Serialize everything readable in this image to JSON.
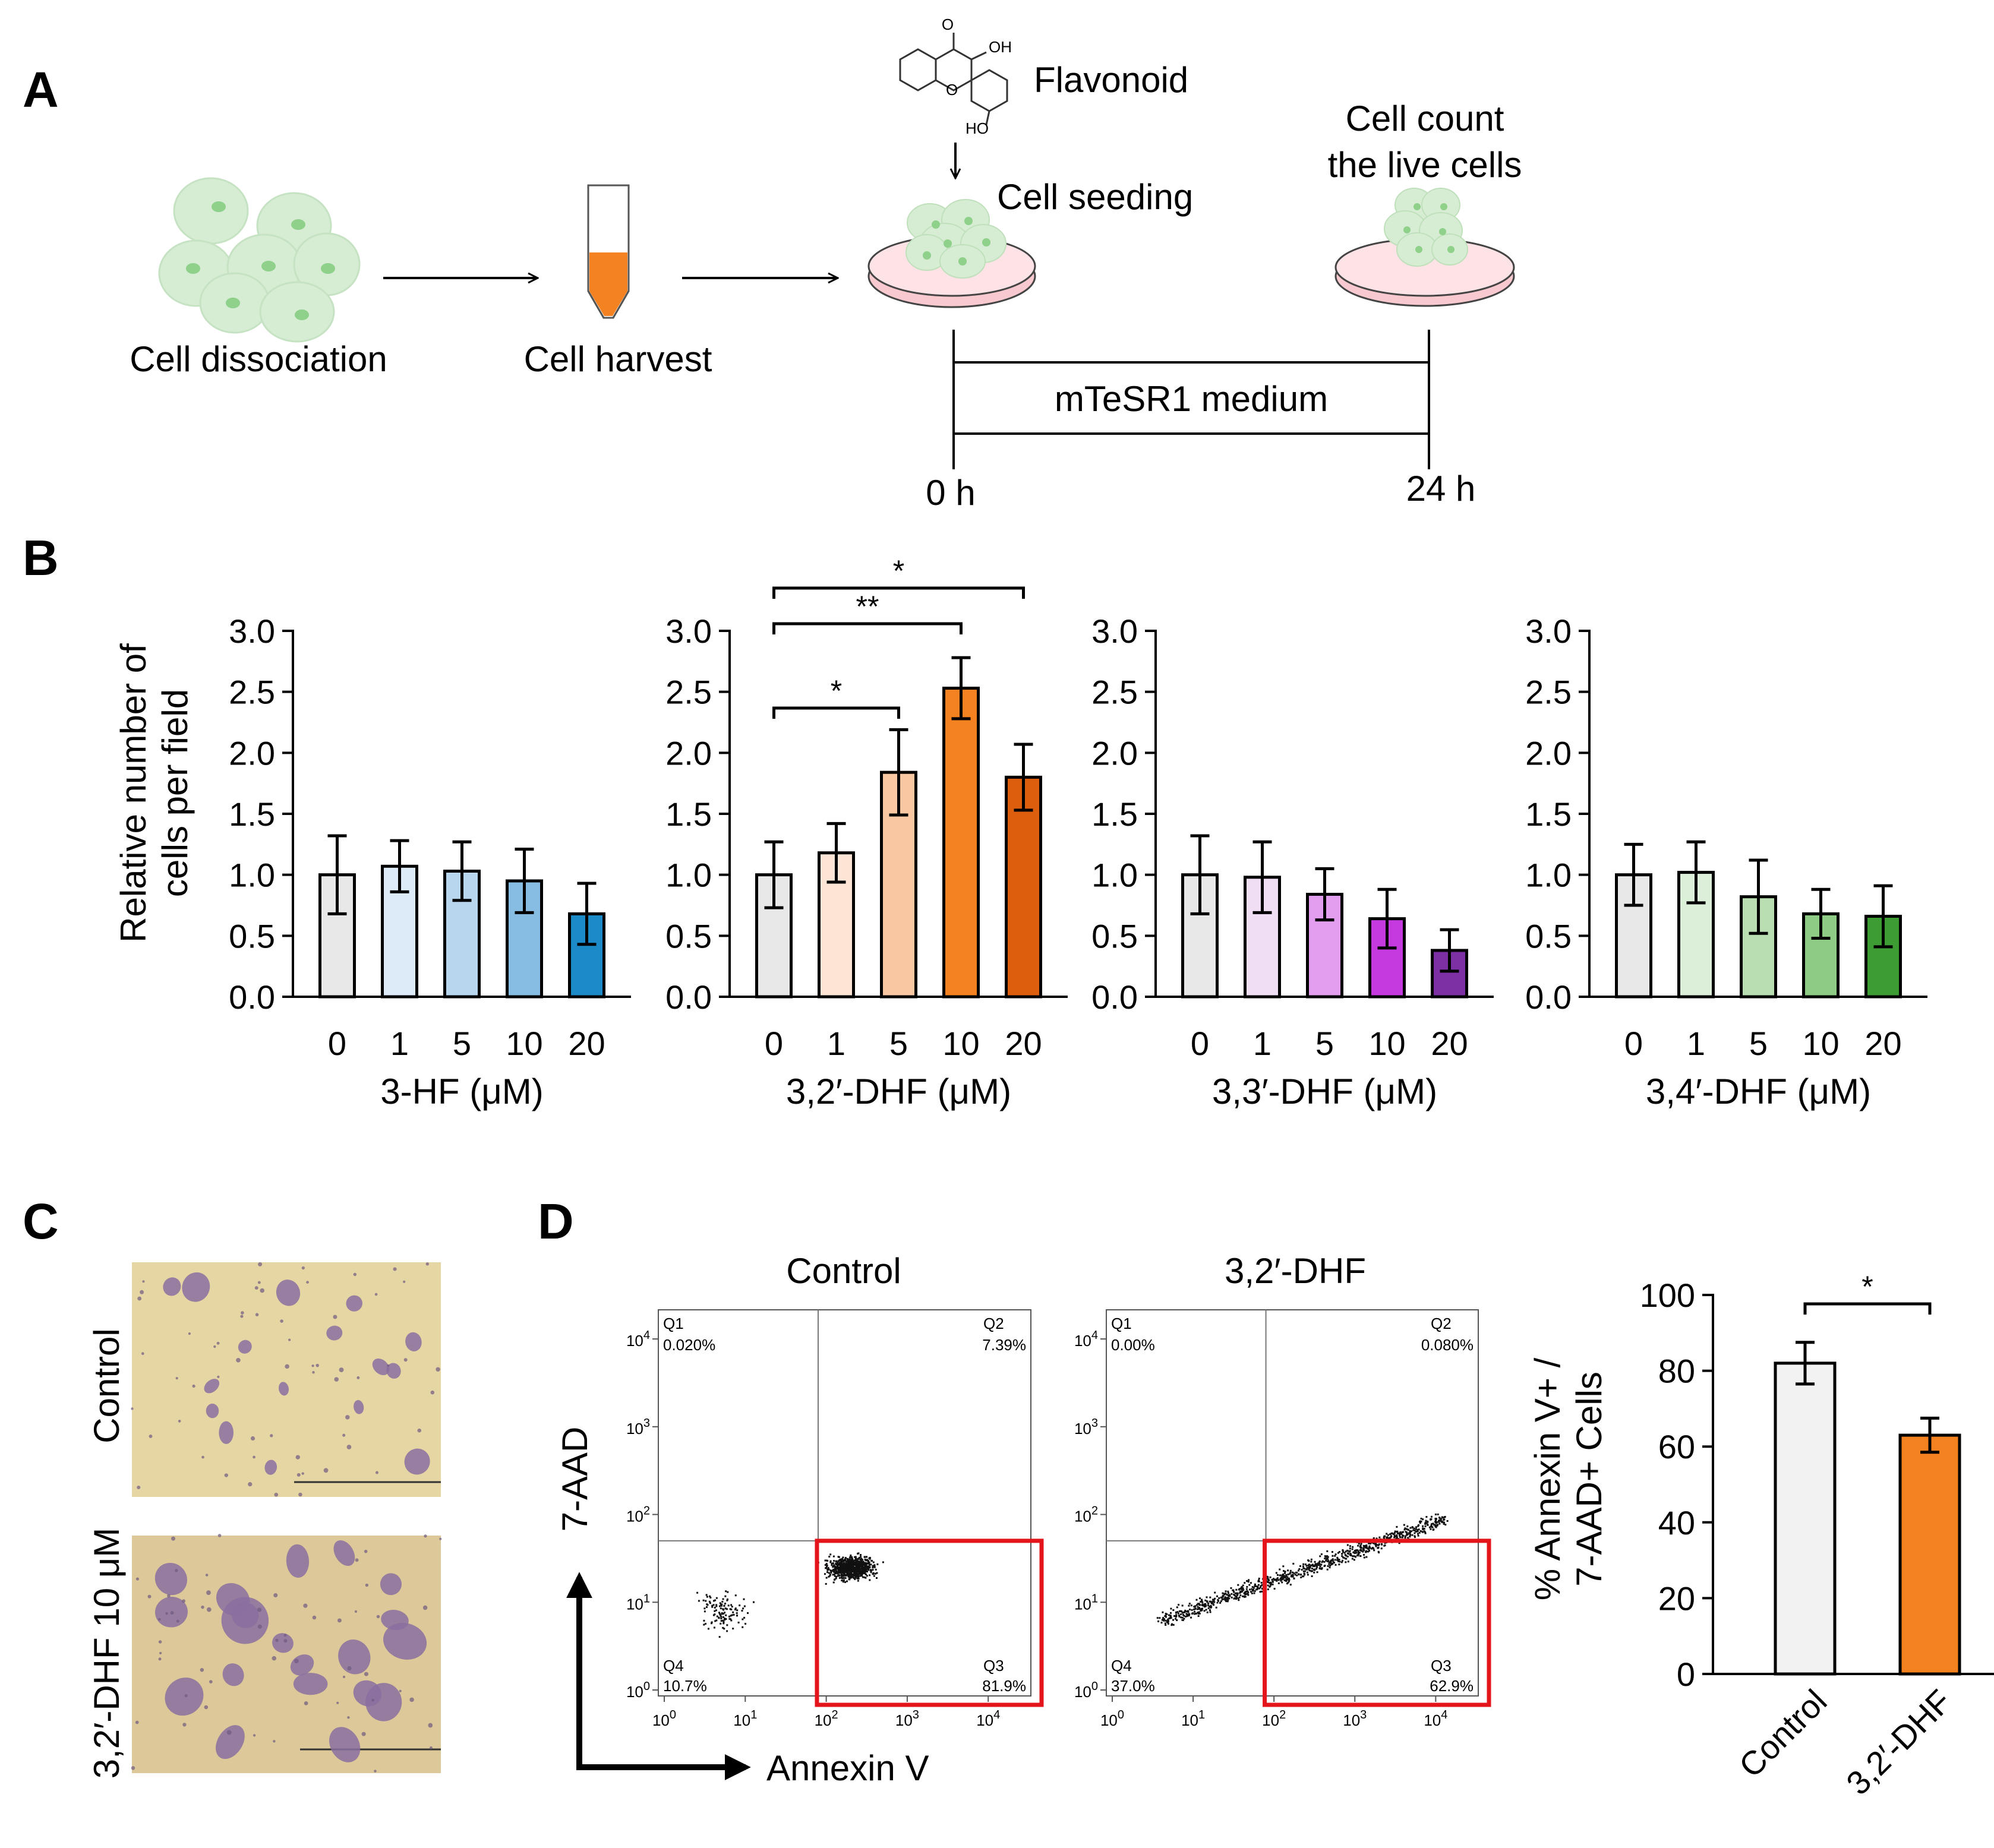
{
  "panels": {
    "a": "A",
    "b": "B",
    "c": "C",
    "d": "D"
  },
  "panel_a": {
    "flavonoid": "Flavonoid",
    "cell_seeding": "Cell seeding",
    "cell_count_line1": "Cell count",
    "cell_count_line2": "the live cells",
    "cell_dissociation": "Cell dissociation",
    "cell_harvest": "Cell harvest",
    "medium": "mTeSR1 medium",
    "t0": "0 h",
    "t24": "24 h",
    "colors": {
      "cell_fill": "#d6edd4",
      "nucleus": "#8fd08a",
      "tube_liquid": "#f58220",
      "dish": "#f8c9cf"
    }
  },
  "panel_c": {
    "control_label": "Control",
    "treated_label": "3,2′-DHF 10 μM",
    "colors": {
      "background": "#e6d6a3",
      "colony": "#8a6fa0"
    }
  },
  "panel_d": {
    "flow_titles": [
      "Control",
      "3,2′-DHF"
    ],
    "y_axis": "7-AAD",
    "x_axis": "Annexin V",
    "tick_labels": [
      "10",
      "0",
      "1",
      "2",
      "3",
      "4"
    ],
    "quadrants": [
      {
        "q1": "Q1",
        "q1v": "0.020%",
        "q2": "Q2",
        "q2v": "7.39%",
        "q3": "Q3",
        "q3v": "81.9%",
        "q4": "Q4",
        "q4v": "10.7%"
      },
      {
        "q1": "Q1",
        "q1v": "0.00%",
        "q2": "Q2",
        "q2v": "0.080%",
        "q3": "Q3",
        "q3v": "62.9%",
        "q4": "Q4",
        "q4v": "37.0%"
      }
    ],
    "gate_color": "#e3151b"
  },
  "chart_data": [
    {
      "type": "bar",
      "panel": "B",
      "ylabel": "Relative number of cells per field",
      "ylabel_lines": [
        "Relative number of",
        "cells per field"
      ],
      "xlabel": "3-HF (μM)",
      "categories": [
        "0",
        "1",
        "5",
        "10",
        "20"
      ],
      "values": [
        1.0,
        1.07,
        1.03,
        0.95,
        0.68
      ],
      "errors": [
        0.32,
        0.21,
        0.24,
        0.26,
        0.25
      ],
      "colors": [
        "#e8e8e8",
        "#ddeaf7",
        "#b8d6ee",
        "#87bde3",
        "#1b8ac7"
      ],
      "ylim": [
        0,
        3.0
      ],
      "yticks": [
        "0.0",
        "0.5",
        "1.0",
        "1.5",
        "2.0",
        "2.5",
        "3.0"
      ],
      "significance": []
    },
    {
      "type": "bar",
      "panel": "B",
      "xlabel": "3,2′-DHF (μM)",
      "categories": [
        "0",
        "1",
        "5",
        "10",
        "20"
      ],
      "values": [
        1.0,
        1.18,
        1.84,
        2.53,
        1.8
      ],
      "errors": [
        0.27,
        0.24,
        0.35,
        0.25,
        0.27
      ],
      "colors": [
        "#e8e8e8",
        "#fde5d6",
        "#f9c8a3",
        "#f58220",
        "#dd5f0e"
      ],
      "ylim": [
        0,
        3.0
      ],
      "yticks": [
        "0.0",
        "0.5",
        "1.0",
        "1.5",
        "2.0",
        "2.5",
        "3.0"
      ],
      "significance": [
        {
          "from": "0",
          "to": "5",
          "label": "*"
        },
        {
          "from": "0",
          "to": "10",
          "label": "**"
        },
        {
          "from": "0",
          "to": "20",
          "label": "*"
        }
      ]
    },
    {
      "type": "bar",
      "panel": "B",
      "xlabel": "3,3′-DHF (μM)",
      "categories": [
        "0",
        "1",
        "5",
        "10",
        "20"
      ],
      "values": [
        1.0,
        0.98,
        0.84,
        0.64,
        0.38
      ],
      "errors": [
        0.32,
        0.29,
        0.21,
        0.24,
        0.17
      ],
      "colors": [
        "#e8e8e8",
        "#f0def5",
        "#e39ef0",
        "#c43adf",
        "#7d2fa4"
      ],
      "ylim": [
        0,
        3.0
      ],
      "yticks": [
        "0.0",
        "0.5",
        "1.0",
        "1.5",
        "2.0",
        "2.5",
        "3.0"
      ],
      "significance": []
    },
    {
      "type": "bar",
      "panel": "B",
      "xlabel": "3,4′-DHF (μM)",
      "categories": [
        "0",
        "1",
        "5",
        "10",
        "20"
      ],
      "values": [
        1.0,
        1.02,
        0.82,
        0.68,
        0.66
      ],
      "errors": [
        0.25,
        0.25,
        0.3,
        0.2,
        0.25
      ],
      "colors": [
        "#e8e8e8",
        "#dcefd8",
        "#b9deb1",
        "#8ecb84",
        "#3e9c35"
      ],
      "ylim": [
        0,
        3.0
      ],
      "yticks": [
        "0.0",
        "0.5",
        "1.0",
        "1.5",
        "2.0",
        "2.5",
        "3.0"
      ],
      "significance": []
    },
    {
      "type": "bar",
      "panel": "D",
      "ylabel": "% Annexin V+ / 7-AAD+ Cells",
      "ylabel_lines": [
        "% Annexin V+ /",
        "7-AAD+ Cells"
      ],
      "xlabel": "",
      "categories": [
        "Control",
        "3,2′-DHF"
      ],
      "values": [
        82,
        63
      ],
      "errors": [
        5.5,
        4.5
      ],
      "colors": [
        "#f2f2f2",
        "#f58220"
      ],
      "ylim": [
        0,
        100
      ],
      "yticks": [
        "0",
        "20",
        "40",
        "60",
        "80",
        "100"
      ],
      "significance": [
        {
          "from": "Control",
          "to": "3,2′-DHF",
          "label": "*"
        }
      ]
    }
  ]
}
